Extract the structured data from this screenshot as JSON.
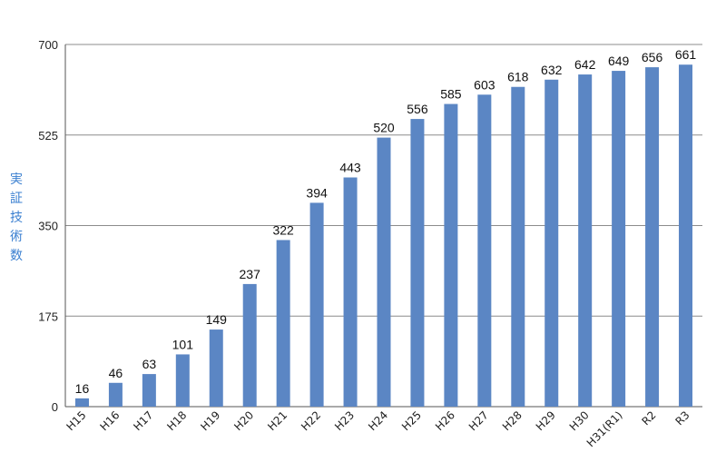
{
  "chart_data": {
    "type": "bar",
    "categories": [
      "H15",
      "H16",
      "H17",
      "H18",
      "H19",
      "H20",
      "H21",
      "H22",
      "H23",
      "H24",
      "H25",
      "H26",
      "H27",
      "H28",
      "H29",
      "H30",
      "H31(R1)",
      "R2",
      "R3"
    ],
    "values": [
      16,
      46,
      63,
      101,
      149,
      237,
      322,
      394,
      443,
      520,
      556,
      585,
      603,
      618,
      632,
      642,
      649,
      656,
      661
    ],
    "data_labels": [
      "16",
      "46",
      "63",
      "101",
      "149",
      "237",
      "322",
      "394",
      "443",
      "520",
      "556",
      "585",
      "603",
      "618",
      "632",
      "642",
      "649",
      "656",
      "661"
    ],
    "ylabel_chars": [
      "実",
      "証",
      "技",
      "術",
      "数"
    ],
    "yticks": [
      0,
      175,
      350,
      525,
      700
    ],
    "ytick_labels": [
      "0",
      "175",
      "350",
      "525",
      "700"
    ],
    "ylim": [
      0,
      700
    ],
    "grid": true,
    "bar_color": "#5b86c4",
    "ylabel_color": "#3a7fd0"
  }
}
